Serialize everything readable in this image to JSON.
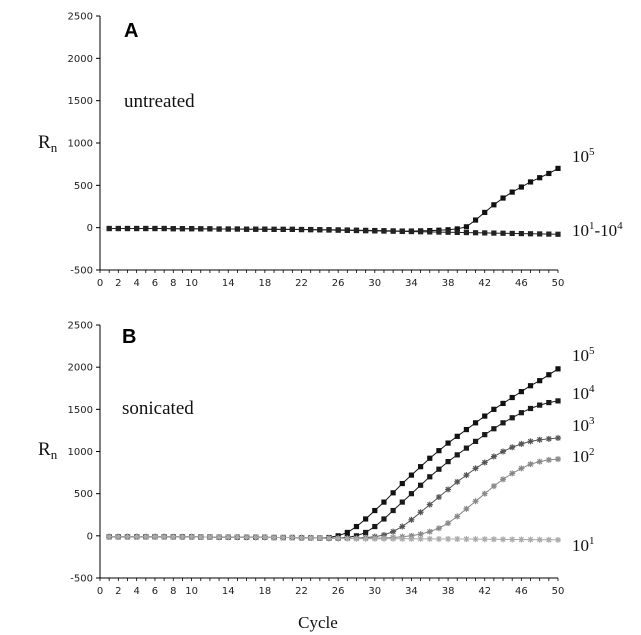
{
  "chart_data": [
    {
      "type": "line",
      "panel": "A",
      "condition": "untreated",
      "ylabel_main": "R",
      "ylabel_sub": "n",
      "xlabel": "",
      "xlim": [
        0,
        50
      ],
      "ylim": [
        -500,
        2500
      ],
      "yticks": [
        -500,
        0,
        500,
        1000,
        1500,
        2000,
        2500
      ],
      "xticks": [
        0,
        2,
        4,
        6,
        8,
        10,
        14,
        18,
        22,
        26,
        30,
        34,
        38,
        42,
        46,
        50
      ],
      "series": [
        {
          "label_base": "10",
          "label_exp": "5",
          "label_suffix_base": "",
          "label_suffix_exp": "",
          "color": "#111111",
          "marker": "square",
          "x": [
            1,
            2,
            3,
            4,
            5,
            6,
            7,
            8,
            9,
            10,
            11,
            12,
            13,
            14,
            15,
            16,
            17,
            18,
            19,
            20,
            21,
            22,
            23,
            24,
            25,
            26,
            27,
            28,
            29,
            30,
            31,
            32,
            33,
            34,
            35,
            36,
            37,
            38,
            39,
            40,
            41,
            42,
            43,
            44,
            45,
            46,
            47,
            48,
            49,
            50
          ],
          "y": [
            -10,
            -10,
            -10,
            -10,
            -10,
            -10,
            -10,
            -12,
            -12,
            -12,
            -14,
            -14,
            -16,
            -16,
            -16,
            -18,
            -18,
            -18,
            -20,
            -20,
            -20,
            -22,
            -22,
            -24,
            -24,
            -26,
            -28,
            -30,
            -32,
            -34,
            -36,
            -38,
            -40,
            -40,
            -38,
            -35,
            -30,
            -25,
            -15,
            10,
            90,
            180,
            270,
            350,
            420,
            480,
            540,
            590,
            640,
            700
          ]
        },
        {
          "label_base": "10",
          "label_exp": "1",
          "label_suffix_base": "-10",
          "label_suffix_exp": "4",
          "color": "#222222",
          "marker": "square",
          "x": [
            1,
            2,
            3,
            4,
            5,
            6,
            7,
            8,
            9,
            10,
            11,
            12,
            13,
            14,
            15,
            16,
            17,
            18,
            19,
            20,
            21,
            22,
            23,
            24,
            25,
            26,
            27,
            28,
            29,
            30,
            31,
            32,
            33,
            34,
            35,
            36,
            37,
            38,
            39,
            40,
            41,
            42,
            43,
            44,
            45,
            46,
            47,
            48,
            49,
            50
          ],
          "y": [
            -10,
            -10,
            -10,
            -10,
            -10,
            -10,
            -10,
            -12,
            -12,
            -12,
            -14,
            -14,
            -16,
            -16,
            -16,
            -18,
            -18,
            -18,
            -20,
            -20,
            -20,
            -22,
            -24,
            -26,
            -28,
            -30,
            -32,
            -34,
            -36,
            -38,
            -40,
            -42,
            -44,
            -46,
            -48,
            -50,
            -52,
            -54,
            -56,
            -58,
            -60,
            -62,
            -64,
            -66,
            -68,
            -70,
            -72,
            -74,
            -76,
            -78
          ]
        }
      ]
    },
    {
      "type": "line",
      "panel": "B",
      "condition": "sonicated",
      "ylabel_main": "R",
      "ylabel_sub": "n",
      "xlabel": "Cycle",
      "xlim": [
        0,
        50
      ],
      "ylim": [
        -500,
        2500
      ],
      "yticks": [
        -500,
        0,
        500,
        1000,
        1500,
        2000,
        2500
      ],
      "xticks": [
        0,
        2,
        4,
        6,
        8,
        10,
        14,
        18,
        22,
        26,
        30,
        34,
        38,
        42,
        46,
        50
      ],
      "series": [
        {
          "label_base": "10",
          "label_exp": "5",
          "color": "#111111",
          "marker": "square",
          "x": [
            1,
            2,
            3,
            4,
            5,
            6,
            7,
            8,
            9,
            10,
            11,
            12,
            13,
            14,
            15,
            16,
            17,
            18,
            19,
            20,
            21,
            22,
            23,
            24,
            25,
            26,
            27,
            28,
            29,
            30,
            31,
            32,
            33,
            34,
            35,
            36,
            37,
            38,
            39,
            40,
            41,
            42,
            43,
            44,
            45,
            46,
            47,
            48,
            49,
            50
          ],
          "y": [
            -10,
            -10,
            -10,
            -10,
            -10,
            -10,
            -10,
            -12,
            -12,
            -12,
            -14,
            -14,
            -16,
            -16,
            -16,
            -18,
            -18,
            -18,
            -20,
            -20,
            -20,
            -22,
            -24,
            -26,
            -20,
            0,
            40,
            110,
            200,
            300,
            400,
            510,
            620,
            720,
            820,
            920,
            1010,
            1100,
            1180,
            1260,
            1340,
            1420,
            1500,
            1570,
            1640,
            1710,
            1780,
            1840,
            1910,
            1980
          ]
        },
        {
          "label_base": "10",
          "label_exp": "4",
          "color": "#1a1a1a",
          "marker": "square",
          "x": [
            1,
            2,
            3,
            4,
            5,
            6,
            7,
            8,
            9,
            10,
            11,
            12,
            13,
            14,
            15,
            16,
            17,
            18,
            19,
            20,
            21,
            22,
            23,
            24,
            25,
            26,
            27,
            28,
            29,
            30,
            31,
            32,
            33,
            34,
            35,
            36,
            37,
            38,
            39,
            40,
            41,
            42,
            43,
            44,
            45,
            46,
            47,
            48,
            49,
            50
          ],
          "y": [
            -10,
            -10,
            -10,
            -10,
            -10,
            -10,
            -10,
            -12,
            -12,
            -12,
            -14,
            -14,
            -16,
            -16,
            -16,
            -18,
            -18,
            -18,
            -20,
            -20,
            -20,
            -22,
            -24,
            -26,
            -28,
            -28,
            -20,
            0,
            40,
            110,
            200,
            300,
            400,
            500,
            600,
            700,
            790,
            880,
            960,
            1040,
            1120,
            1200,
            1270,
            1340,
            1400,
            1460,
            1510,
            1550,
            1580,
            1600
          ]
        },
        {
          "label_base": "10",
          "label_exp": "3",
          "color": "#555555",
          "marker": "star",
          "x": [
            1,
            2,
            3,
            4,
            5,
            6,
            7,
            8,
            9,
            10,
            11,
            12,
            13,
            14,
            15,
            16,
            17,
            18,
            19,
            20,
            21,
            22,
            23,
            24,
            25,
            26,
            27,
            28,
            29,
            30,
            31,
            32,
            33,
            34,
            35,
            36,
            37,
            38,
            39,
            40,
            41,
            42,
            43,
            44,
            45,
            46,
            47,
            48,
            49,
            50
          ],
          "y": [
            -10,
            -10,
            -10,
            -10,
            -10,
            -10,
            -10,
            -12,
            -12,
            -12,
            -14,
            -14,
            -16,
            -16,
            -16,
            -18,
            -18,
            -18,
            -20,
            -20,
            -20,
            -22,
            -24,
            -26,
            -28,
            -30,
            -30,
            -28,
            -20,
            -10,
            10,
            50,
            110,
            190,
            280,
            370,
            460,
            550,
            640,
            720,
            800,
            870,
            940,
            1000,
            1050,
            1090,
            1120,
            1140,
            1150,
            1160
          ]
        },
        {
          "label_base": "10",
          "label_exp": "2",
          "color": "#888888",
          "marker": "star",
          "x": [
            1,
            2,
            3,
            4,
            5,
            6,
            7,
            8,
            9,
            10,
            11,
            12,
            13,
            14,
            15,
            16,
            17,
            18,
            19,
            20,
            21,
            22,
            23,
            24,
            25,
            26,
            27,
            28,
            29,
            30,
            31,
            32,
            33,
            34,
            35,
            36,
            37,
            38,
            39,
            40,
            41,
            42,
            43,
            44,
            45,
            46,
            47,
            48,
            49,
            50
          ],
          "y": [
            -10,
            -10,
            -10,
            -10,
            -10,
            -10,
            -10,
            -12,
            -12,
            -12,
            -14,
            -14,
            -16,
            -16,
            -16,
            -18,
            -18,
            -18,
            -20,
            -20,
            -20,
            -22,
            -24,
            -26,
            -28,
            -30,
            -32,
            -32,
            -30,
            -28,
            -25,
            -20,
            -10,
            0,
            20,
            50,
            90,
            150,
            230,
            320,
            410,
            500,
            590,
            670,
            740,
            800,
            850,
            880,
            900,
            910
          ]
        },
        {
          "label_base": "10",
          "label_exp": "1",
          "color": "#aaaaaa",
          "marker": "star",
          "x": [
            1,
            2,
            3,
            4,
            5,
            6,
            7,
            8,
            9,
            10,
            11,
            12,
            13,
            14,
            15,
            16,
            17,
            18,
            19,
            20,
            21,
            22,
            23,
            24,
            25,
            26,
            27,
            28,
            29,
            30,
            31,
            32,
            33,
            34,
            35,
            36,
            37,
            38,
            39,
            40,
            41,
            42,
            43,
            44,
            45,
            46,
            47,
            48,
            49,
            50
          ],
          "y": [
            -10,
            -10,
            -10,
            -10,
            -10,
            -10,
            -10,
            -12,
            -12,
            -12,
            -14,
            -14,
            -16,
            -16,
            -16,
            -18,
            -18,
            -18,
            -20,
            -20,
            -20,
            -22,
            -24,
            -26,
            -28,
            -30,
            -32,
            -34,
            -34,
            -34,
            -34,
            -34,
            -35,
            -35,
            -36,
            -36,
            -37,
            -37,
            -38,
            -38,
            -39,
            -40,
            -41,
            -42,
            -43,
            -44,
            -45,
            -46,
            -47,
            -48
          ]
        }
      ]
    }
  ]
}
